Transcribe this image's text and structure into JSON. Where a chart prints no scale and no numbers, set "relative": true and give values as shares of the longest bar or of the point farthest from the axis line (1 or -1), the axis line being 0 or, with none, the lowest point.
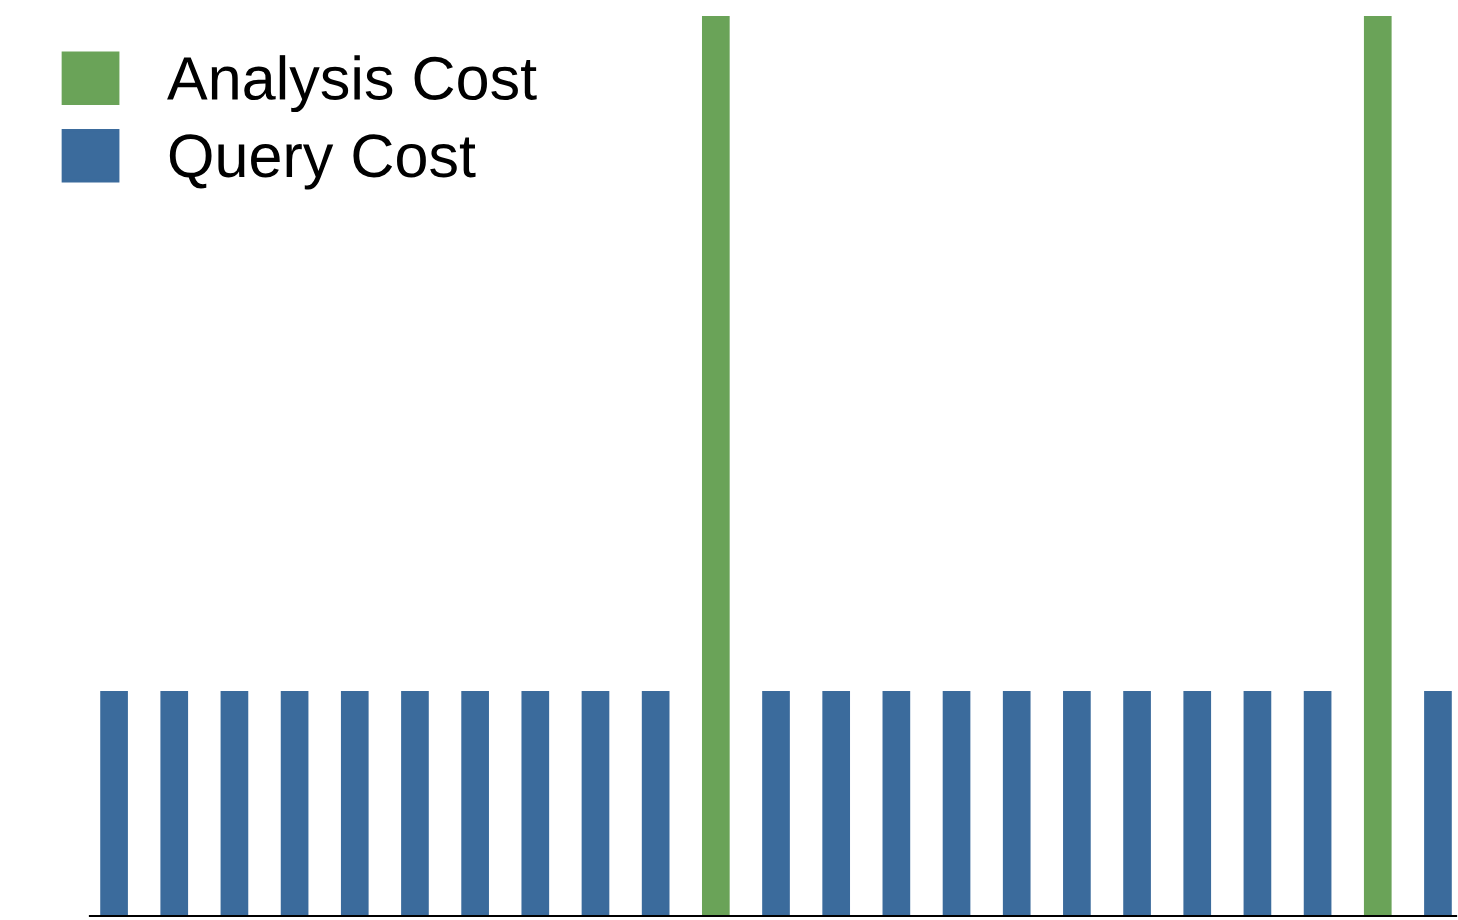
{
  "chart_data": {
    "type": "bar",
    "relative": true,
    "legend": "top left",
    "stacked": true,
    "categories": [
      null,
      null,
      null,
      null,
      null,
      null,
      null,
      null,
      null,
      null,
      null,
      null,
      null,
      null,
      null,
      null,
      null,
      null,
      null,
      null,
      null,
      null,
      null
    ],
    "series": [
      {
        "name": "Analysis Cost",
        "color": "#6aa358",
        "values": [
          0,
          0,
          0,
          0,
          0,
          0,
          0,
          0,
          0,
          0,
          1,
          0,
          0,
          0,
          0,
          0,
          0,
          0,
          0,
          0,
          0,
          1,
          0
        ]
      },
      {
        "name": "Query Cost",
        "color": "#3b6b9c",
        "values": [
          0.25,
          0.25,
          0.25,
          0.25,
          0.25,
          0.25,
          0.25,
          0.25,
          0.25,
          0.25,
          0,
          0.25,
          0.25,
          0.25,
          0.25,
          0.25,
          0.25,
          0.25,
          0.25,
          0.25,
          0.25,
          0,
          0.25
        ]
      }
    ]
  }
}
